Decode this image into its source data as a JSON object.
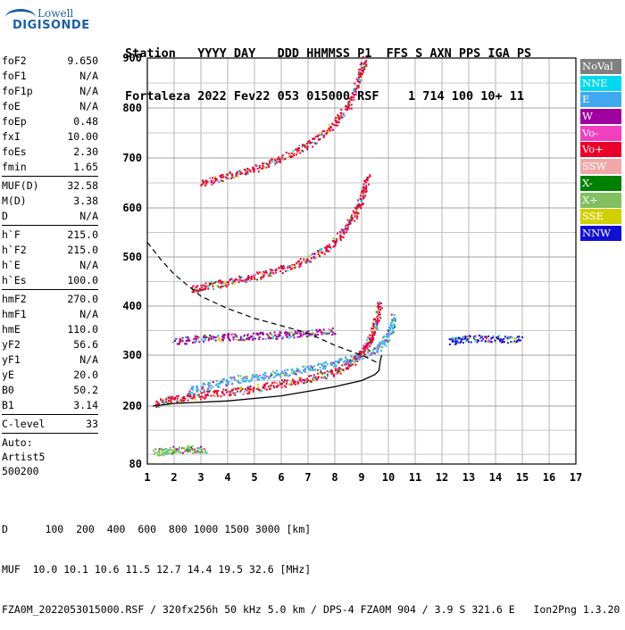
{
  "logo": {
    "small": "Lowell",
    "big": "DIGISONDE"
  },
  "header": {
    "line1": "Station   YYYY DAY   DDD HHMMSS P1  FFS S AXN PPS IGA PS",
    "line2": "Fortaleza 2022 Fev22 053 015000 RSF    1 714 100 10+ 11"
  },
  "params": [
    {
      "name": "foF2",
      "value": "9.650"
    },
    {
      "name": "foF1",
      "value": "N/A"
    },
    {
      "name": "foF1p",
      "value": "N/A"
    },
    {
      "name": "foE",
      "value": "N/A"
    },
    {
      "name": "foEp",
      "value": "0.48"
    },
    {
      "name": "fxI",
      "value": "10.00"
    },
    {
      "name": "foEs",
      "value": "2.30"
    },
    {
      "name": "fmin",
      "value": "1.65"
    },
    {
      "sep": true
    },
    {
      "name": "MUF(D)",
      "value": "32.58"
    },
    {
      "name": "M(D)",
      "value": "3.38"
    },
    {
      "name": "D",
      "value": "N/A"
    },
    {
      "sep": true
    },
    {
      "name": "h`F",
      "value": "215.0"
    },
    {
      "name": "h`F2",
      "value": "215.0"
    },
    {
      "name": "h`E",
      "value": "N/A"
    },
    {
      "name": "h`Es",
      "value": "100.0"
    },
    {
      "sep": true
    },
    {
      "name": "hmF2",
      "value": "270.0"
    },
    {
      "name": "hmF1",
      "value": "N/A"
    },
    {
      "name": "hmE",
      "value": "110.0"
    },
    {
      "name": "yF2",
      "value": "56.6"
    },
    {
      "name": "yF1",
      "value": "N/A"
    },
    {
      "name": "yE",
      "value": "20.0"
    },
    {
      "name": "B0",
      "value": "50.2"
    },
    {
      "name": "B1",
      "value": "3.14"
    },
    {
      "sep": true
    },
    {
      "name": "C-level",
      "value": "33"
    },
    {
      "sep": true
    },
    {
      "text": "Auto:"
    },
    {
      "text": "Artist5"
    },
    {
      "text": "500200"
    }
  ],
  "legend": [
    {
      "label": "NoVal",
      "color": "#808080"
    },
    {
      "label": "NNE",
      "color": "#00d8f0"
    },
    {
      "label": "E",
      "color": "#40a8f0"
    },
    {
      "label": "W",
      "color": "#a000a0"
    },
    {
      "label": "Vo-",
      "color": "#f040c0"
    },
    {
      "label": "Vo+",
      "color": "#e8002a"
    },
    {
      "label": "SSW",
      "color": "#f0a8a8"
    },
    {
      "label": "X-",
      "color": "#008000"
    },
    {
      "label": "X+",
      "color": "#80c060"
    },
    {
      "label": "SSE",
      "color": "#d0d000"
    },
    {
      "label": "NNW",
      "color": "#1010d0"
    }
  ],
  "footer": {
    "line1": "D      100  200  400  600  800 1000 1500 3000 [km]",
    "line2": "MUF  10.0 10.1 10.6 11.5 12.7 14.4 19.5 32.6 [MHz]",
    "line3": "FZA0M_2022053015000.RSF / 320fx256h 50 kHz 5.0 km / DPS-4 FZA0M 904 / 3.9 S 321.6 E   Ion2Png 1.3.20"
  },
  "chart_data": {
    "type": "scatter",
    "x_ticks": [
      1,
      2,
      3,
      4,
      5,
      6,
      7,
      8,
      9,
      10,
      11,
      12,
      13,
      14,
      15,
      16,
      17
    ],
    "y_ticks": [
      80,
      200,
      300,
      400,
      500,
      600,
      700,
      800,
      900
    ],
    "xlim": [
      1,
      17
    ],
    "ylim": [
      80,
      900
    ],
    "x_unit": "MHz",
    "y_unit": "km",
    "grid": true,
    "traces": [
      {
        "name": "F-layer O trace",
        "color": "#e8002a",
        "points": [
          [
            1.3,
            205
          ],
          [
            2,
            215
          ],
          [
            3,
            222
          ],
          [
            4,
            228
          ],
          [
            5,
            236
          ],
          [
            6,
            245
          ],
          [
            7,
            255
          ],
          [
            8,
            268
          ],
          [
            8.6,
            285
          ],
          [
            9.0,
            305
          ],
          [
            9.3,
            330
          ],
          [
            9.5,
            365
          ],
          [
            9.7,
            410
          ]
        ]
      },
      {
        "name": "F-layer X trace",
        "color": "#40a8f0",
        "points": [
          [
            2.5,
            230
          ],
          [
            3.5,
            245
          ],
          [
            4.5,
            255
          ],
          [
            5.5,
            262
          ],
          [
            6.5,
            270
          ],
          [
            7.5,
            280
          ],
          [
            8.5,
            292
          ],
          [
            9.5,
            310
          ],
          [
            10.0,
            340
          ],
          [
            10.2,
            380
          ]
        ]
      },
      {
        "name": "2nd multiple",
        "color": "#e8002a",
        "points": [
          [
            2.6,
            435
          ],
          [
            3.5,
            445
          ],
          [
            4.5,
            455
          ],
          [
            5.5,
            468
          ],
          [
            6.5,
            485
          ],
          [
            7.5,
            510
          ],
          [
            8.2,
            545
          ],
          [
            8.7,
            585
          ],
          [
            9.0,
            620
          ],
          [
            9.2,
            665
          ]
        ]
      },
      {
        "name": "3rd multiple",
        "color": "#e8002a",
        "points": [
          [
            3.0,
            650
          ],
          [
            4,
            665
          ],
          [
            5,
            680
          ],
          [
            6,
            700
          ],
          [
            7,
            728
          ],
          [
            7.8,
            760
          ],
          [
            8.5,
            805
          ],
          [
            8.9,
            860
          ],
          [
            9.1,
            900
          ]
        ]
      },
      {
        "name": "Es trace",
        "color": "#a000a0",
        "points": [
          [
            2.0,
            330
          ],
          [
            3,
            335
          ],
          [
            4,
            338
          ],
          [
            5,
            340
          ],
          [
            6,
            342
          ],
          [
            7,
            345
          ],
          [
            8,
            350
          ]
        ]
      },
      {
        "name": "Es low",
        "color": "#80c060",
        "points": [
          [
            1.3,
            105
          ],
          [
            1.8,
            110
          ],
          [
            2.5,
            112
          ],
          [
            3.2,
            110
          ]
        ]
      },
      {
        "name": "Spread F echoes",
        "color": "#1010d0",
        "points": [
          [
            12.3,
            330
          ],
          [
            13,
            335
          ],
          [
            14,
            335
          ],
          [
            15,
            333
          ]
        ]
      }
    ],
    "profile_curve": {
      "points": [
        [
          1.2,
          200
        ],
        [
          2,
          205
        ],
        [
          4,
          210
        ],
        [
          6,
          220
        ],
        [
          8,
          238
        ],
        [
          9,
          250
        ],
        [
          9.5,
          262
        ],
        [
          9.65,
          270
        ],
        [
          9.7,
          290
        ],
        [
          9.75,
          300
        ]
      ]
    },
    "dashed_curve": {
      "points": [
        [
          1,
          530
        ],
        [
          1.5,
          495
        ],
        [
          2,
          465
        ],
        [
          3,
          420
        ],
        [
          4,
          395
        ],
        [
          5,
          375
        ],
        [
          6,
          360
        ],
        [
          7,
          345
        ],
        [
          8,
          320
        ],
        [
          9,
          300
        ],
        [
          9.6,
          285
        ]
      ]
    }
  }
}
